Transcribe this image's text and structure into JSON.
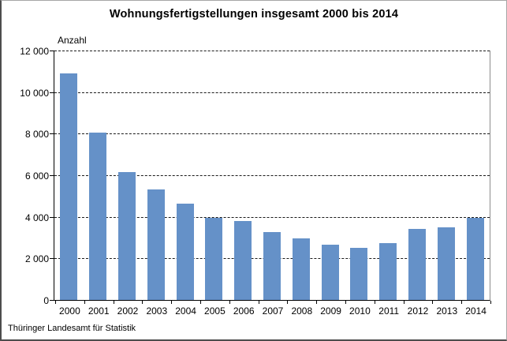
{
  "source": "Thüringer Landesamt für Statistik",
  "colors": {
    "bar": "#6591c8",
    "grid": "#1a1a1a",
    "axis": "#000000",
    "plot_right_border": "#8c8c8c"
  },
  "chart_data": {
    "type": "bar",
    "title": "Wohnungsfertigstellungen insgesamt 2000 bis 2014",
    "ylabel": "Anzahl",
    "xlabel": "",
    "categories": [
      "2000",
      "2001",
      "2002",
      "2003",
      "2004",
      "2005",
      "2006",
      "2007",
      "2008",
      "2009",
      "2010",
      "2011",
      "2012",
      "2013",
      "2014"
    ],
    "values": [
      10900,
      8050,
      6150,
      5300,
      4650,
      3950,
      3800,
      3250,
      2950,
      2650,
      2500,
      2750,
      3400,
      3500,
      3950
    ],
    "ylim": [
      0,
      12000
    ],
    "ytick_interval": 2000,
    "ytick_labels": [
      "0",
      "2 000",
      "4 000",
      "6 000",
      "8 000",
      "10 000",
      "12 000"
    ],
    "grid": true,
    "legend": false,
    "source": "Thüringer Landesamt für Statistik"
  }
}
